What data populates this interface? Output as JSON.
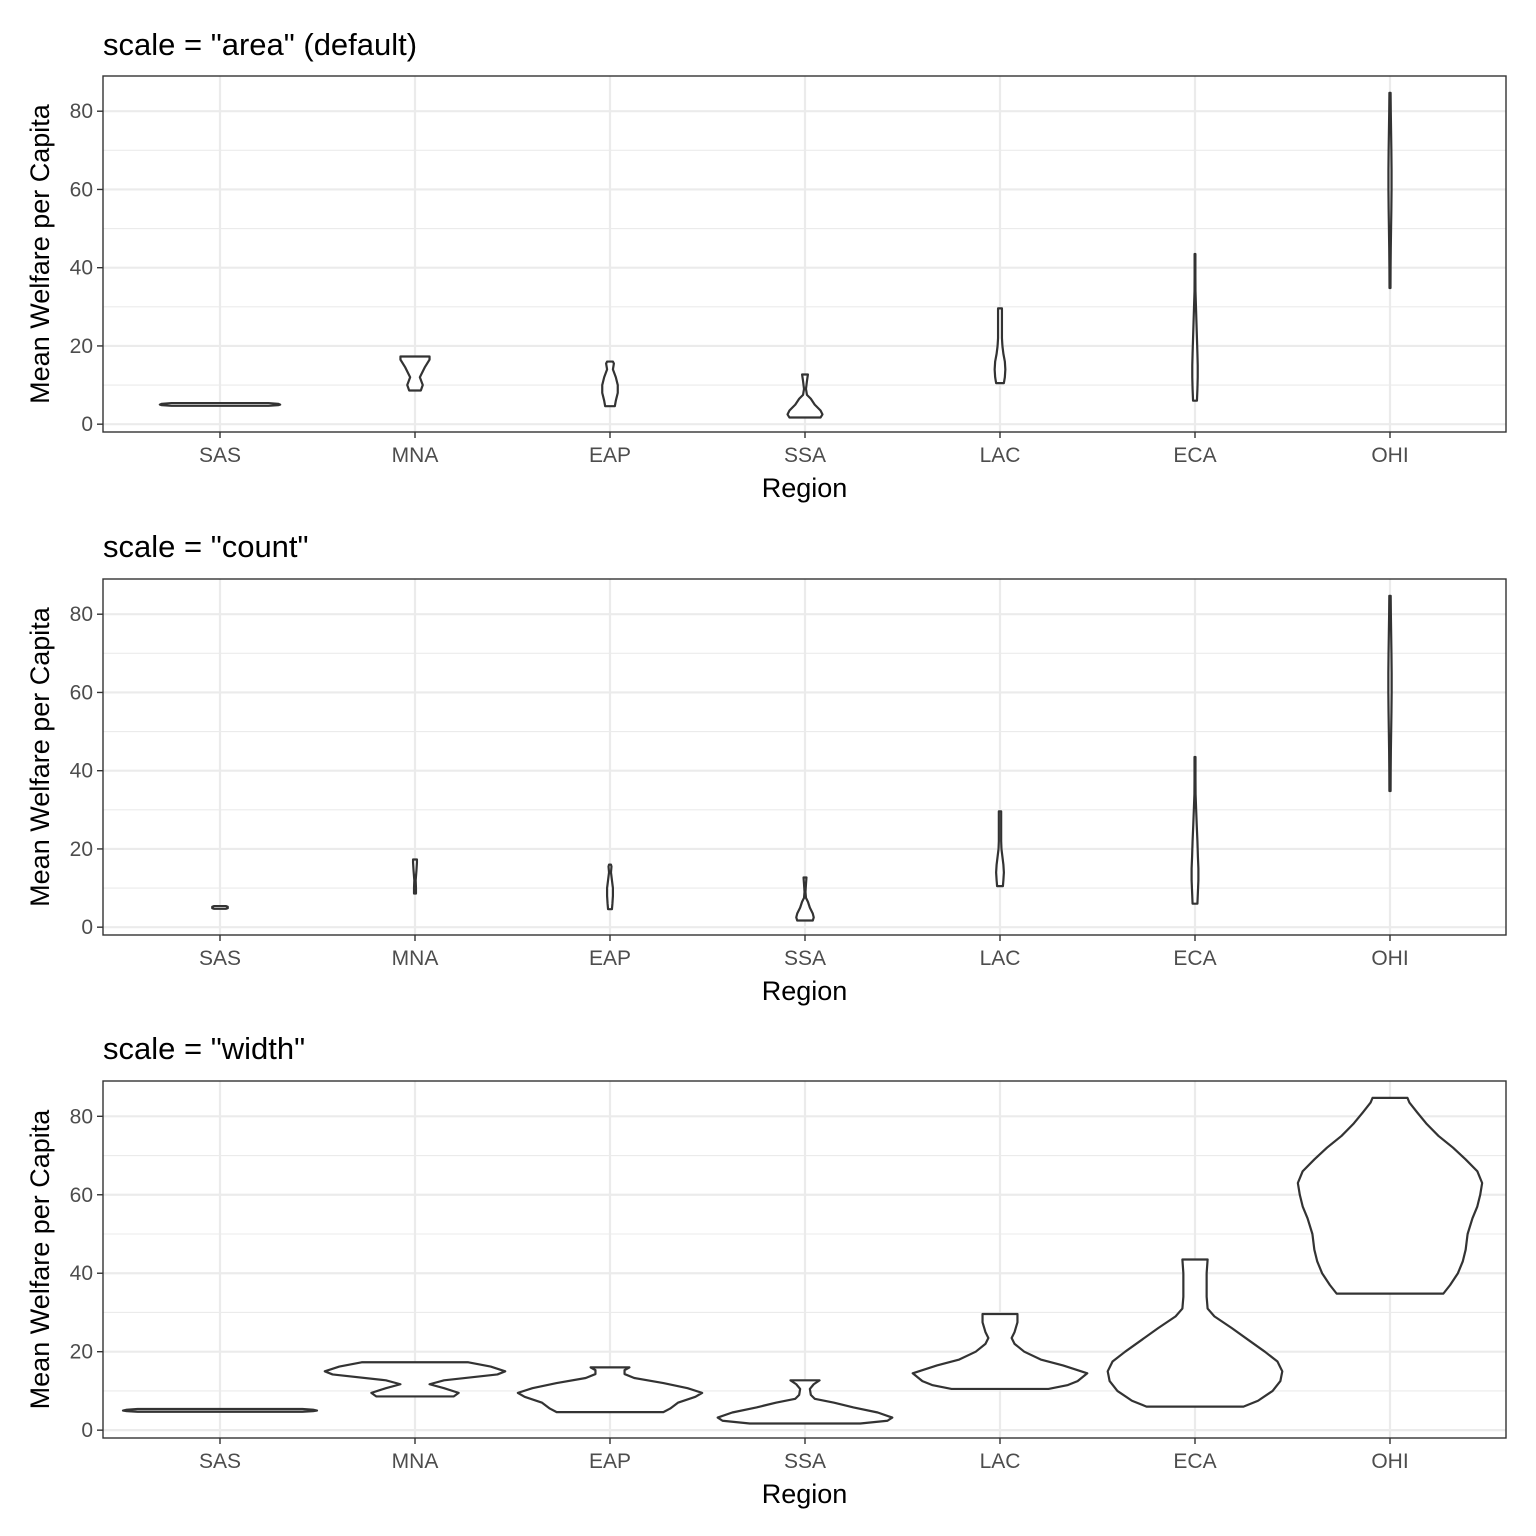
{
  "chart_data": [
    {
      "type": "violin",
      "title": "scale = \"area\" (default)",
      "xlabel": "Region",
      "ylabel": "Mean Welfare per Capita",
      "categories": [
        "SAS",
        "MNA",
        "EAP",
        "SSA",
        "LAC",
        "ECA",
        "OHI"
      ],
      "yticks": [
        0,
        20,
        40,
        60,
        80
      ],
      "ylim": [
        -2,
        89
      ],
      "grid": true,
      "violins": [
        {
          "category": "SAS",
          "profile": [
            [
              4.7,
              0.5
            ],
            [
              4.85,
              0.6
            ],
            [
              5.0,
              0.62
            ],
            [
              5.2,
              0.6
            ],
            [
              5.4,
              0.5
            ]
          ]
        },
        {
          "category": "MNA",
          "profile": [
            [
              8.6,
              0.06
            ],
            [
              10.0,
              0.08
            ],
            [
              12.0,
              0.05
            ],
            [
              14.5,
              0.1
            ],
            [
              16.5,
              0.15
            ],
            [
              17.3,
              0.15
            ]
          ]
        },
        {
          "category": "EAP",
          "profile": [
            [
              4.6,
              0.05
            ],
            [
              6.0,
              0.06
            ],
            [
              8.0,
              0.08
            ],
            [
              10.0,
              0.08
            ],
            [
              12.0,
              0.06
            ],
            [
              14.0,
              0.03
            ],
            [
              15.5,
              0.04
            ],
            [
              16.0,
              0.03
            ]
          ]
        },
        {
          "category": "SSA",
          "profile": [
            [
              1.7,
              0.16
            ],
            [
              2.5,
              0.18
            ],
            [
              3.5,
              0.16
            ],
            [
              5.0,
              0.1
            ],
            [
              6.5,
              0.06
            ],
            [
              7.5,
              0.02
            ],
            [
              9.0,
              0.01
            ],
            [
              11.0,
              0.02
            ],
            [
              12.7,
              0.03
            ]
          ]
        },
        {
          "category": "LAC",
          "profile": [
            [
              10.5,
              0.04
            ],
            [
              12.0,
              0.05
            ],
            [
              14.0,
              0.055
            ],
            [
              16.0,
              0.05
            ],
            [
              18.0,
              0.035
            ],
            [
              20.0,
              0.025
            ],
            [
              22.0,
              0.02
            ],
            [
              24.0,
              0.02
            ],
            [
              26.0,
              0.02
            ],
            [
              28.0,
              0.02
            ],
            [
              29.6,
              0.02
            ]
          ]
        },
        {
          "category": "ECA",
          "profile": [
            [
              6.0,
              0.02
            ],
            [
              9.0,
              0.025
            ],
            [
              12.0,
              0.028
            ],
            [
              15.0,
              0.028
            ],
            [
              18.0,
              0.025
            ],
            [
              22.0,
              0.02
            ],
            [
              26.0,
              0.015
            ],
            [
              30.0,
              0.01
            ],
            [
              34.0,
              0.005
            ],
            [
              38.0,
              0.004
            ],
            [
              43.5,
              0.004
            ]
          ]
        },
        {
          "category": "OHI",
          "profile": [
            [
              34.8,
              0.005
            ],
            [
              40.0,
              0.006
            ],
            [
              45.0,
              0.008
            ],
            [
              50.0,
              0.011
            ],
            [
              55.0,
              0.014
            ],
            [
              60.0,
              0.016
            ],
            [
              65.0,
              0.016
            ],
            [
              70.0,
              0.014
            ],
            [
              75.0,
              0.011
            ],
            [
              80.0,
              0.008
            ],
            [
              84.7,
              0.006
            ]
          ]
        }
      ]
    },
    {
      "type": "violin",
      "title": "scale = \"count\"",
      "xlabel": "Region",
      "ylabel": "Mean Welfare per Capita",
      "categories": [
        "SAS",
        "MNA",
        "EAP",
        "SSA",
        "LAC",
        "ECA",
        "OHI"
      ],
      "yticks": [
        0,
        20,
        40,
        60,
        80
      ],
      "ylim": [
        -2,
        89
      ],
      "grid": true,
      "violins": [
        {
          "category": "SAS",
          "profile": [
            [
              4.7,
              0.06
            ],
            [
              4.85,
              0.08
            ],
            [
              5.0,
              0.08
            ],
            [
              5.2,
              0.08
            ],
            [
              5.4,
              0.06
            ]
          ]
        },
        {
          "category": "MNA",
          "profile": [
            [
              8.6,
              0.01
            ],
            [
              10.0,
              0.01
            ],
            [
              12.0,
              0.007
            ],
            [
              14.5,
              0.015
            ],
            [
              16.5,
              0.02
            ],
            [
              17.3,
              0.02
            ]
          ]
        },
        {
          "category": "EAP",
          "profile": [
            [
              4.6,
              0.02
            ],
            [
              6.0,
              0.025
            ],
            [
              8.0,
              0.03
            ],
            [
              10.0,
              0.03
            ],
            [
              12.0,
              0.02
            ],
            [
              14.0,
              0.01
            ],
            [
              15.5,
              0.015
            ],
            [
              16.0,
              0.01
            ]
          ]
        },
        {
          "category": "SSA",
          "profile": [
            [
              1.7,
              0.08
            ],
            [
              2.5,
              0.09
            ],
            [
              3.5,
              0.08
            ],
            [
              5.0,
              0.05
            ],
            [
              6.5,
              0.03
            ],
            [
              7.5,
              0.01
            ],
            [
              9.0,
              0.005
            ],
            [
              11.0,
              0.01
            ],
            [
              12.7,
              0.015
            ]
          ]
        },
        {
          "category": "LAC",
          "profile": [
            [
              10.5,
              0.03
            ],
            [
              12.0,
              0.035
            ],
            [
              14.0,
              0.04
            ],
            [
              16.0,
              0.035
            ],
            [
              18.0,
              0.025
            ],
            [
              20.0,
              0.015
            ],
            [
              22.0,
              0.012
            ],
            [
              24.0,
              0.012
            ],
            [
              26.0,
              0.012
            ],
            [
              28.0,
              0.012
            ],
            [
              29.6,
              0.012
            ]
          ]
        },
        {
          "category": "ECA",
          "profile": [
            [
              6.0,
              0.025
            ],
            [
              9.0,
              0.03
            ],
            [
              12.0,
              0.035
            ],
            [
              15.0,
              0.035
            ],
            [
              18.0,
              0.03
            ],
            [
              22.0,
              0.025
            ],
            [
              26.0,
              0.018
            ],
            [
              30.0,
              0.012
            ],
            [
              34.0,
              0.006
            ],
            [
              38.0,
              0.005
            ],
            [
              43.5,
              0.005
            ]
          ]
        },
        {
          "category": "OHI",
          "profile": [
            [
              34.8,
              0.006
            ],
            [
              40.0,
              0.007
            ],
            [
              45.0,
              0.009
            ],
            [
              50.0,
              0.012
            ],
            [
              55.0,
              0.015
            ],
            [
              60.0,
              0.017
            ],
            [
              65.0,
              0.017
            ],
            [
              70.0,
              0.015
            ],
            [
              75.0,
              0.012
            ],
            [
              80.0,
              0.009
            ],
            [
              84.7,
              0.007
            ]
          ]
        }
      ]
    },
    {
      "type": "violin",
      "title": "scale = \"width\"",
      "xlabel": "Region",
      "ylabel": "Mean Welfare per Capita",
      "categories": [
        "SAS",
        "MNA",
        "EAP",
        "SSA",
        "LAC",
        "ECA",
        "OHI"
      ],
      "yticks": [
        0,
        20,
        40,
        60,
        80
      ],
      "ylim": [
        -2,
        89
      ],
      "grid": true,
      "violins": [
        {
          "category": "SAS",
          "profile": [
            [
              4.7,
              0.85
            ],
            [
              4.85,
              0.96
            ],
            [
              5.0,
              1.0
            ],
            [
              5.2,
              0.96
            ],
            [
              5.4,
              0.85
            ]
          ]
        },
        {
          "category": "MNA",
          "profile": [
            [
              8.6,
              0.4
            ],
            [
              9.5,
              0.45
            ],
            [
              10.7,
              0.3
            ],
            [
              11.7,
              0.15
            ],
            [
              12.7,
              0.3
            ],
            [
              14.2,
              0.85
            ],
            [
              15.0,
              0.93
            ],
            [
              16.2,
              0.78
            ],
            [
              17.3,
              0.55
            ]
          ]
        },
        {
          "category": "EAP",
          "profile": [
            [
              4.6,
              0.55
            ],
            [
              5.5,
              0.62
            ],
            [
              7.0,
              0.7
            ],
            [
              8.5,
              0.88
            ],
            [
              9.5,
              0.95
            ],
            [
              10.7,
              0.8
            ],
            [
              12.0,
              0.55
            ],
            [
              13.3,
              0.25
            ],
            [
              14.3,
              0.15
            ],
            [
              15.3,
              0.15
            ],
            [
              16.0,
              0.2
            ]
          ]
        },
        {
          "category": "SSA",
          "profile": [
            [
              1.7,
              0.57
            ],
            [
              2.4,
              0.85
            ],
            [
              3.2,
              0.9
            ],
            [
              4.5,
              0.75
            ],
            [
              5.8,
              0.5
            ],
            [
              7.0,
              0.3
            ],
            [
              8.0,
              0.1
            ],
            [
              9.0,
              0.06
            ],
            [
              10.5,
              0.05
            ],
            [
              11.7,
              0.09
            ],
            [
              12.7,
              0.15
            ]
          ]
        },
        {
          "category": "LAC",
          "profile": [
            [
              10.5,
              0.5
            ],
            [
              11.5,
              0.7
            ],
            [
              12.5,
              0.8
            ],
            [
              14.5,
              0.9
            ],
            [
              16.5,
              0.65
            ],
            [
              18.0,
              0.42
            ],
            [
              20.0,
              0.25
            ],
            [
              22.0,
              0.15
            ],
            [
              23.5,
              0.12
            ],
            [
              25.0,
              0.15
            ],
            [
              27.5,
              0.18
            ],
            [
              29.6,
              0.18
            ]
          ]
        },
        {
          "category": "ECA",
          "profile": [
            [
              6.0,
              0.5
            ],
            [
              7.5,
              0.65
            ],
            [
              10.0,
              0.8
            ],
            [
              12.5,
              0.88
            ],
            [
              15.0,
              0.9
            ],
            [
              17.5,
              0.85
            ],
            [
              20.0,
              0.72
            ],
            [
              23.0,
              0.55
            ],
            [
              26.0,
              0.38
            ],
            [
              29.0,
              0.2
            ],
            [
              31.0,
              0.13
            ],
            [
              34.0,
              0.12
            ],
            [
              37.0,
              0.12
            ],
            [
              40.0,
              0.12
            ],
            [
              43.5,
              0.13
            ]
          ]
        },
        {
          "category": "OHI",
          "profile": [
            [
              34.8,
              0.55
            ],
            [
              37.0,
              0.62
            ],
            [
              40.0,
              0.7
            ],
            [
              43.0,
              0.75
            ],
            [
              46.0,
              0.78
            ],
            [
              50.0,
              0.8
            ],
            [
              54.0,
              0.85
            ],
            [
              57.0,
              0.9
            ],
            [
              60.0,
              0.93
            ],
            [
              63.0,
              0.95
            ],
            [
              66.0,
              0.9
            ],
            [
              69.0,
              0.78
            ],
            [
              72.0,
              0.65
            ],
            [
              75.0,
              0.5
            ],
            [
              78.0,
              0.38
            ],
            [
              81.0,
              0.28
            ],
            [
              83.5,
              0.2
            ],
            [
              84.7,
              0.18
            ]
          ]
        }
      ]
    }
  ]
}
